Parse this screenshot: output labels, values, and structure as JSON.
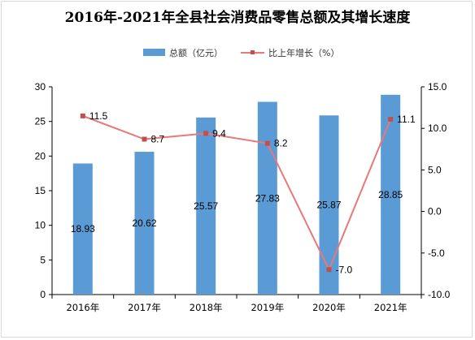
{
  "chart_data": {
    "type": "bar",
    "title": "2016年-2021年全县社会消费品零售总额及其增长速度",
    "categories": [
      "2016年",
      "2017年",
      "2018年",
      "2019年",
      "2020年",
      "2021年"
    ],
    "series": [
      {
        "name": "总额（亿元）",
        "type": "bar",
        "axis": "left",
        "color": "#5b9bd5",
        "values": [
          18.93,
          20.62,
          25.57,
          27.83,
          25.87,
          28.85
        ],
        "labels": [
          "18.93",
          "20.62",
          "25.57",
          "27.83",
          "25.87",
          "28.85"
        ]
      },
      {
        "name": "比上年增长（%）",
        "type": "line",
        "axis": "right",
        "color": "#e8787a",
        "marker_color": "#c0504d",
        "values": [
          11.5,
          8.7,
          9.4,
          8.2,
          -7.0,
          11.1
        ],
        "labels": [
          "11.5",
          "8.7",
          "9.4",
          "8.2",
          "-7.0",
          "11.1"
        ]
      }
    ],
    "y_left": {
      "min": 0,
      "max": 30,
      "step": 5,
      "ticks": [
        "0",
        "5",
        "10",
        "15",
        "20",
        "25",
        "30"
      ]
    },
    "y_right": {
      "min": -10,
      "max": 15,
      "step": 5,
      "ticks": [
        "-10.0",
        "-5.0",
        "0.0",
        "5.0",
        "10.0",
        "15.0"
      ]
    },
    "grid": false,
    "legend_position": "top"
  }
}
